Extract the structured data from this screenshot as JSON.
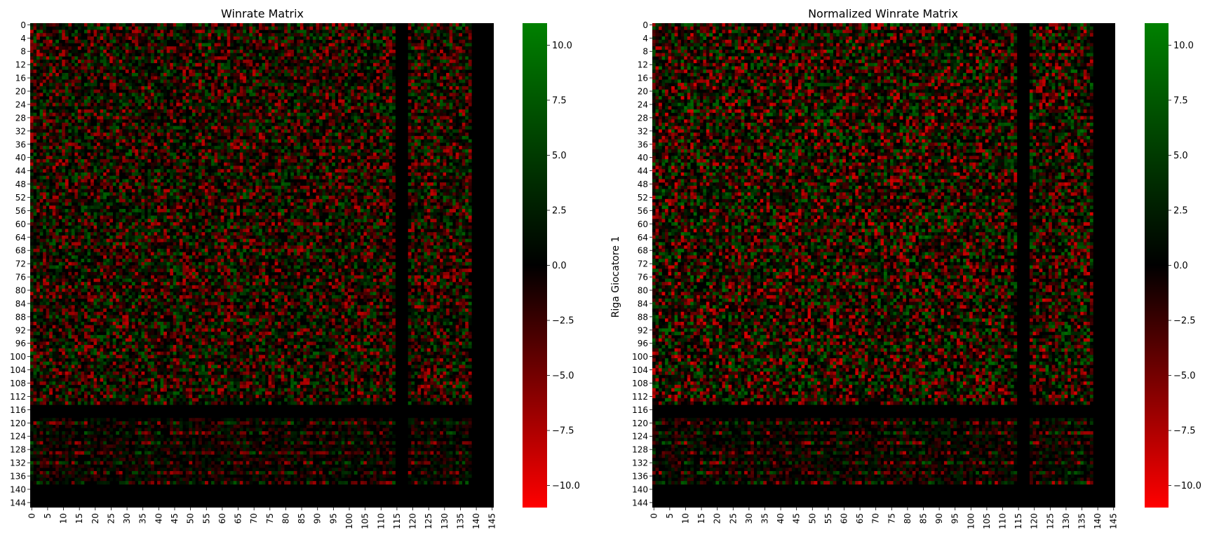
{
  "chart_data": [
    {
      "type": "heatmap",
      "title": "Winrate Matrix",
      "xlabel": "",
      "ylabel": "",
      "rows": 146,
      "cols": 146,
      "xticklabels": [
        "0",
        "5",
        "10",
        "15",
        "20",
        "25",
        "30",
        "35",
        "40",
        "45",
        "50",
        "55",
        "60",
        "65",
        "70",
        "75",
        "80",
        "85",
        "90",
        "95",
        "100",
        "105",
        "110",
        "115",
        "120",
        "125",
        "130",
        "135",
        "140",
        "145"
      ],
      "yticklabels": [
        "0",
        "4",
        "8",
        "12",
        "16",
        "20",
        "24",
        "28",
        "32",
        "36",
        "40",
        "44",
        "48",
        "52",
        "56",
        "60",
        "64",
        "68",
        "72",
        "76",
        "80",
        "84",
        "88",
        "92",
        "96",
        "100",
        "104",
        "108",
        "112",
        "116",
        "120",
        "124",
        "128",
        "132",
        "136",
        "140",
        "144"
      ],
      "colorbar": {
        "min": -11,
        "max": 11,
        "ticks": [
          "10.0",
          "7.5",
          "5.0",
          "2.5",
          "0.0",
          "−2.5",
          "−5.0",
          "−7.5",
          "−10.0"
        ],
        "tick_values": [
          10,
          7.5,
          5,
          2.5,
          0,
          -2.5,
          -5,
          -7.5,
          -10
        ]
      },
      "colormap": {
        "low": "#ff0000",
        "mid": "#000000",
        "high": "#008000"
      },
      "notes": "Cell values are per-player win/loss counts; the observable structure: a dense noisy block for rows/cols 0–115, near-zero (black) bands around cols 115–118 and 138–145, and sparse rows 116–139."
    },
    {
      "type": "heatmap",
      "title": "Normalized Winrate Matrix",
      "xlabel": "",
      "ylabel": "Riga Giocatore 1",
      "rows": 146,
      "cols": 146,
      "xticklabels": [
        "0",
        "5",
        "10",
        "15",
        "20",
        "25",
        "30",
        "35",
        "40",
        "45",
        "50",
        "55",
        "60",
        "65",
        "70",
        "75",
        "80",
        "85",
        "90",
        "95",
        "100",
        "105",
        "110",
        "115",
        "120",
        "125",
        "130",
        "135",
        "140",
        "145"
      ],
      "yticklabels": [
        "0",
        "4",
        "8",
        "12",
        "16",
        "20",
        "24",
        "28",
        "32",
        "36",
        "40",
        "44",
        "48",
        "52",
        "56",
        "60",
        "64",
        "68",
        "72",
        "76",
        "80",
        "84",
        "88",
        "92",
        "96",
        "100",
        "104",
        "108",
        "112",
        "116",
        "120",
        "124",
        "128",
        "132",
        "136",
        "140",
        "144"
      ],
      "colorbar": {
        "min": -11,
        "max": 11,
        "ticks": [
          "10.0",
          "7.5",
          "5.0",
          "2.5",
          "0.0",
          "−2.5",
          "−5.0",
          "−7.5",
          "−10.0"
        ],
        "tick_values": [
          10,
          7.5,
          5,
          2.5,
          0,
          -2.5,
          -5,
          -7.5,
          -10
        ]
      },
      "colormap": {
        "low": "#ff0000",
        "mid": "#000000",
        "high": "#008000"
      }
    }
  ]
}
